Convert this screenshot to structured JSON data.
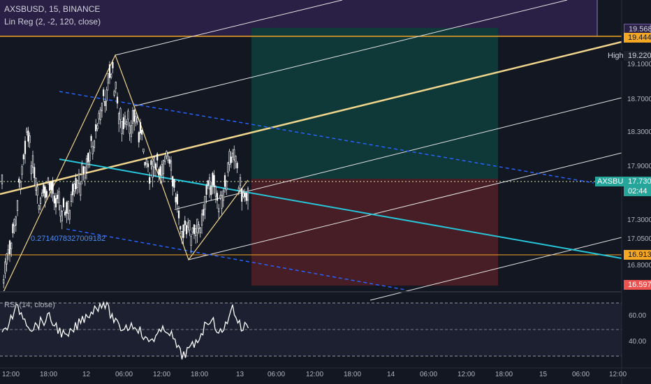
{
  "legend": {
    "symbol_line": "AXSBUSD, 15, BINANCE",
    "indicator_line": "Lin Reg (2, -2, 120, close)",
    "rsi_line": "RSI (14, close)"
  },
  "annotation": {
    "value_text": "0.2714078327009182"
  },
  "price_axis": {
    "ticks": [
      "19.1000",
      "18.7000",
      "18.3000",
      "17.9000",
      "17.3000",
      "17.0500",
      "16.8000"
    ],
    "tags": {
      "upper_channel": "19.5685",
      "upper_line": "19.4448",
      "high_label": "High",
      "high_value": "19.2207",
      "symbol": "AXSBUSD",
      "price": "17.7300",
      "countdown": "02:44",
      "lower_line": "16.9130",
      "stop": "16.5973"
    }
  },
  "rsi_axis": {
    "ticks": [
      "60.00",
      "40.00"
    ]
  },
  "time_axis": {
    "ticks": [
      "12:00",
      "18:00",
      "12",
      "06:00",
      "12:00",
      "18:00",
      "13",
      "06:00",
      "12:00",
      "18:00",
      "14",
      "06:00",
      "12:00",
      "18:00",
      "15",
      "06:00",
      "12:00"
    ]
  },
  "colors": {
    "background": "#131722",
    "candle": "#ffffff",
    "orange_line": "#f5a623",
    "yellow_line": "#f0d58c",
    "cyan_line": "#26c6da",
    "blue_dash": "#2962ff",
    "profit_zone": "#0f3b3a",
    "loss_zone": "#4a1f26",
    "purple_zone": "#2a1f45",
    "price_tag": "#26a69a",
    "stop_tag": "#ef5350"
  }
}
